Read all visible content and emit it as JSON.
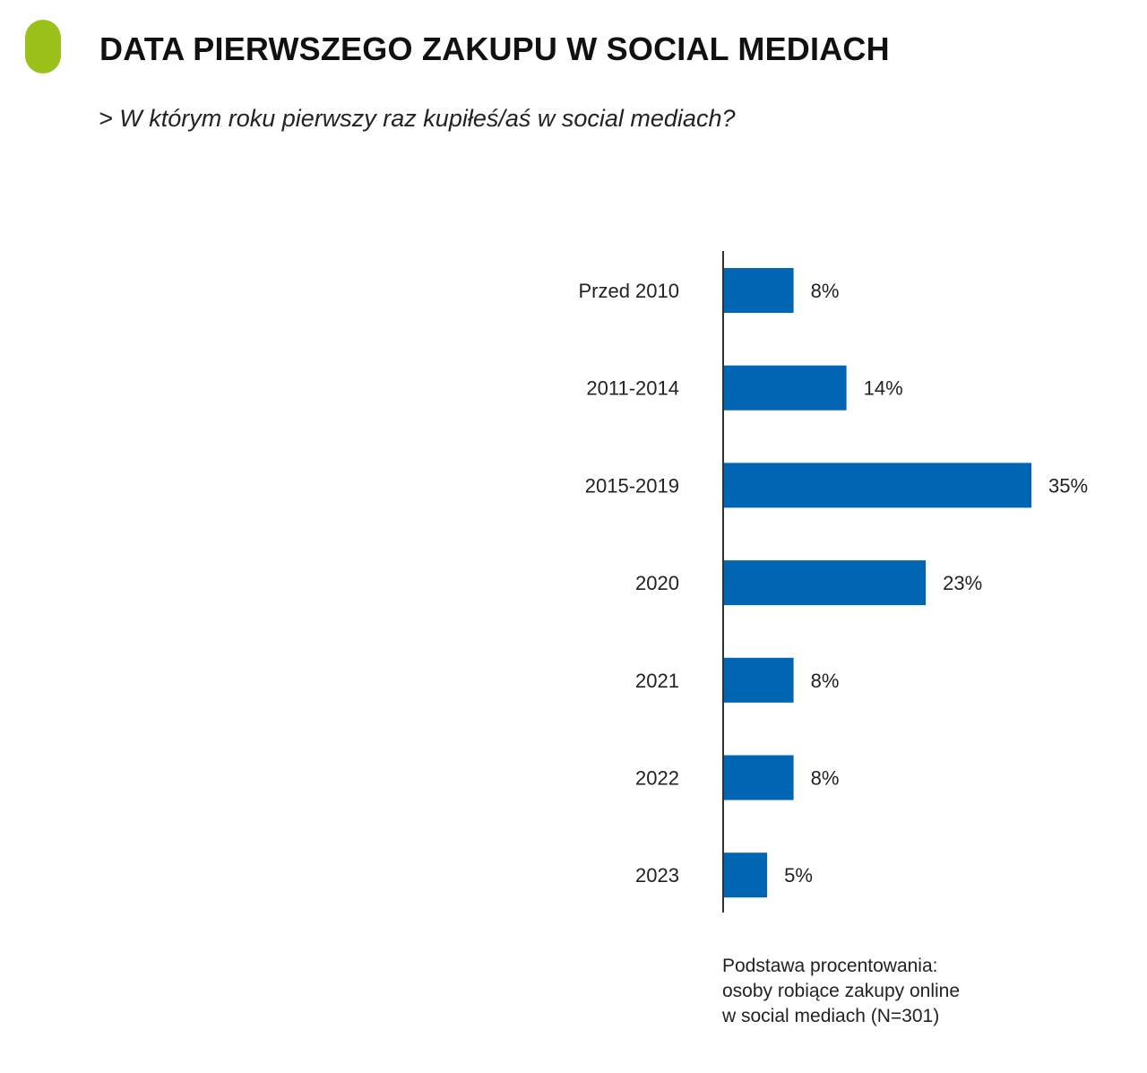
{
  "header": {
    "title": "DATA PIERWSZEGO ZAKUPU W SOCIAL MEDIACH",
    "question": "> W którym roku pierwszy raz kupiłeś/aś w social mediach?"
  },
  "footnote": {
    "lines": [
      "Podstawa procentowania:",
      "osoby robiące zakupy online",
      "w social mediach (N=301)"
    ]
  },
  "colors": {
    "accent": "#9ac21a",
    "bar": "#0066b3",
    "axis": "#333333"
  },
  "chart_data": {
    "type": "bar",
    "orientation": "horizontal",
    "categories": [
      "Przed 2010",
      "2011-2014",
      "2015-2019",
      "2020",
      "2021",
      "2022",
      "2023"
    ],
    "values": [
      8,
      14,
      35,
      23,
      8,
      8,
      5
    ],
    "value_labels": [
      "8%",
      "14%",
      "35%",
      "23%",
      "8%",
      "8%",
      "5%"
    ],
    "unit": "%",
    "xlim": [
      0,
      35
    ],
    "grid": false,
    "legend": "none"
  }
}
